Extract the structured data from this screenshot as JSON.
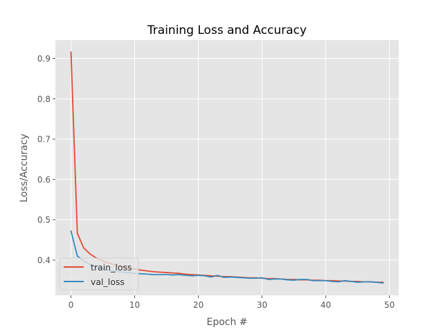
{
  "chart_data": {
    "type": "line",
    "title": "Training Loss and Accuracy",
    "xlabel": "Epoch #",
    "ylabel": "Loss/Accuracy",
    "xlim": [
      -2.45,
      51.45
    ],
    "ylim": [
      0.3125,
      0.9455
    ],
    "xticks": [
      0,
      10,
      20,
      30,
      40,
      50
    ],
    "yticks": [
      0.4,
      0.5,
      0.6,
      0.7,
      0.8,
      0.9
    ],
    "grid": true,
    "legend_position": "lower-left",
    "background": "#e5e5e5",
    "series": [
      {
        "name": "train_loss",
        "color": "#e24a33",
        "x": [
          0,
          1,
          2,
          3,
          4,
          5,
          6,
          7,
          8,
          9,
          10,
          11,
          12,
          13,
          14,
          15,
          16,
          17,
          18,
          19,
          20,
          21,
          22,
          23,
          24,
          25,
          26,
          27,
          28,
          29,
          30,
          31,
          32,
          33,
          34,
          35,
          36,
          37,
          38,
          39,
          40,
          41,
          42,
          43,
          44,
          45,
          46,
          47,
          48,
          49
        ],
        "y": [
          0.916,
          0.466,
          0.43,
          0.415,
          0.405,
          0.398,
          0.392,
          0.388,
          0.384,
          0.381,
          0.378,
          0.375,
          0.373,
          0.371,
          0.37,
          0.369,
          0.368,
          0.367,
          0.365,
          0.364,
          0.363,
          0.362,
          0.361,
          0.36,
          0.359,
          0.359,
          0.358,
          0.357,
          0.356,
          0.356,
          0.355,
          0.354,
          0.354,
          0.353,
          0.352,
          0.352,
          0.351,
          0.351,
          0.35,
          0.35,
          0.349,
          0.349,
          0.348,
          0.348,
          0.347,
          0.347,
          0.346,
          0.346,
          0.345,
          0.345
        ]
      },
      {
        "name": "val_loss",
        "color": "#348abd",
        "x": [
          0,
          1,
          2,
          3,
          4,
          5,
          6,
          7,
          8,
          9,
          10,
          11,
          12,
          13,
          14,
          15,
          16,
          17,
          18,
          19,
          20,
          21,
          22,
          23,
          24,
          25,
          26,
          27,
          28,
          29,
          30,
          31,
          32,
          33,
          34,
          35,
          36,
          37,
          38,
          39,
          40,
          41,
          42,
          43,
          44,
          45,
          46,
          47,
          48,
          49
        ],
        "y": [
          0.472,
          0.41,
          0.398,
          0.389,
          0.382,
          0.378,
          0.374,
          0.372,
          0.37,
          0.369,
          0.367,
          0.366,
          0.365,
          0.364,
          0.364,
          0.364,
          0.363,
          0.364,
          0.362,
          0.361,
          0.362,
          0.361,
          0.358,
          0.362,
          0.357,
          0.358,
          0.357,
          0.356,
          0.355,
          0.355,
          0.356,
          0.352,
          0.353,
          0.353,
          0.351,
          0.35,
          0.352,
          0.352,
          0.349,
          0.349,
          0.349,
          0.347,
          0.346,
          0.349,
          0.347,
          0.345,
          0.346,
          0.346,
          0.345,
          0.343
        ]
      }
    ]
  }
}
